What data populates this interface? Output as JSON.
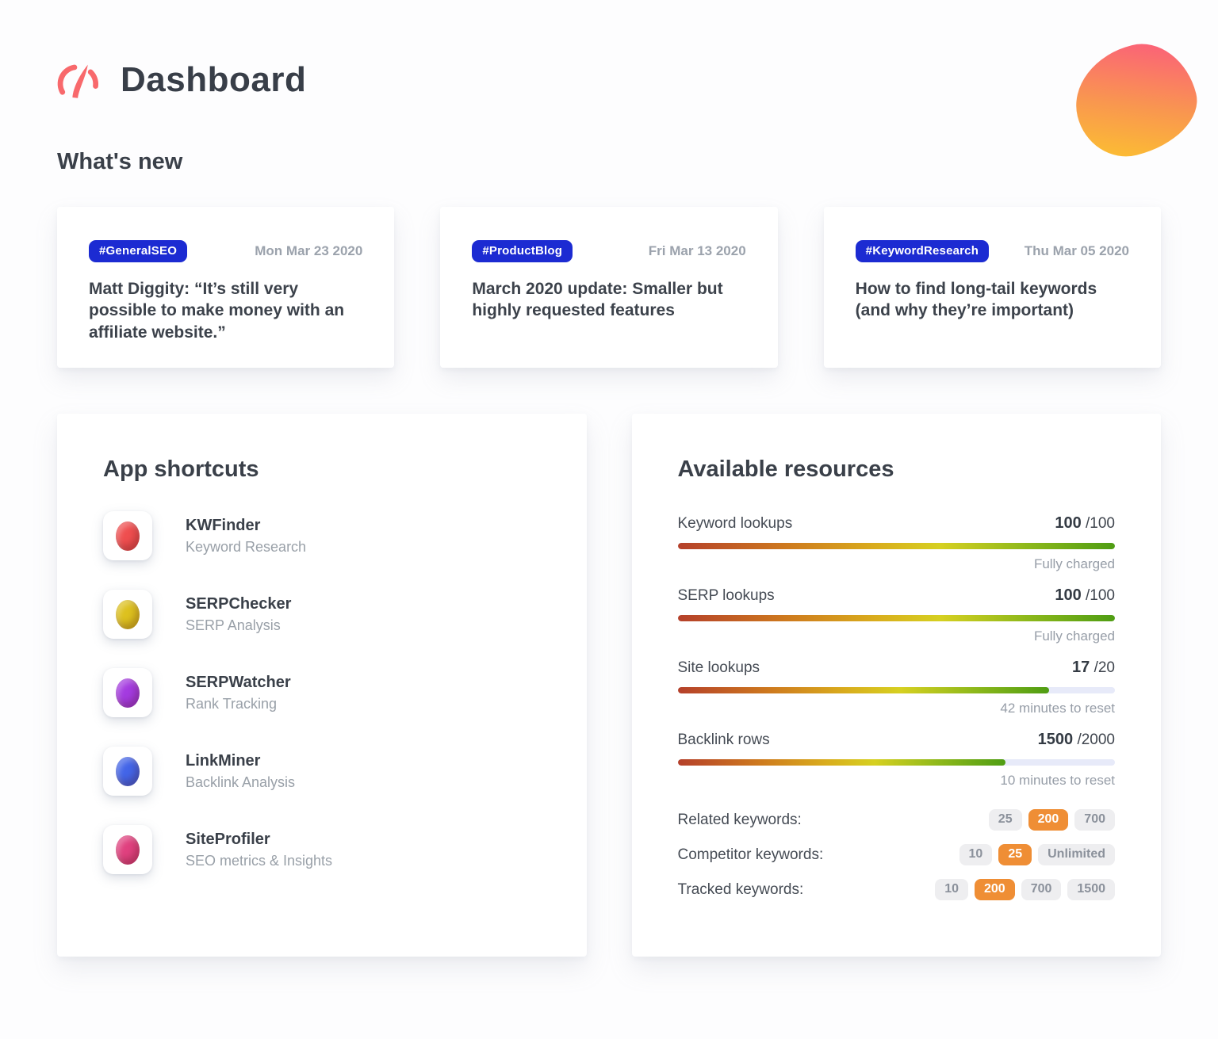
{
  "header": {
    "title": "Dashboard",
    "logo": "gauge-icon"
  },
  "colors": {
    "brand_coral": "#F8696C",
    "badge_blue": "#1C2BD2",
    "chip_orange": "#EF8E35",
    "meter_gradient_start": "#B5402A",
    "meter_gradient_mid": "#D6D021",
    "meter_gradient_end": "#4F9D13",
    "blob_gradient_top": "#FB5E7B",
    "blob_gradient_bottom": "#FCC22F"
  },
  "whats_new": {
    "heading": "What's new",
    "cards": [
      {
        "tag": "#GeneralSEO",
        "date": "Mon Mar 23 2020",
        "title": "Matt Diggity: “It’s still very possible to make money with an affiliate website.”"
      },
      {
        "tag": "#ProductBlog",
        "date": "Fri Mar 13 2020",
        "title": "March 2020 update: Smaller but highly requested features"
      },
      {
        "tag": "#KeywordResearch",
        "date": "Thu Mar 05 2020",
        "title": "How to find long-tail keywords (and why they’re important)"
      }
    ]
  },
  "app_shortcuts": {
    "heading": "App shortcuts",
    "items": [
      {
        "name": "KWFinder",
        "description": "Keyword Research",
        "color": "#EF4E4F"
      },
      {
        "name": "SERPChecker",
        "description": "SERP Analysis",
        "color": "#DDC11F"
      },
      {
        "name": "SERPWatcher",
        "description": "Rank Tracking",
        "color": "#A43BE0"
      },
      {
        "name": "LinkMiner",
        "description": "Backlink Analysis",
        "color": "#4365E8"
      },
      {
        "name": "SiteProfiler",
        "description": "SEO metrics & Insights",
        "color": "#E0417F"
      }
    ]
  },
  "resources": {
    "heading": "Available resources",
    "value_separator": "/",
    "meters": [
      {
        "label": "Keyword lookups",
        "used": 100,
        "total": 100,
        "note": "Fully charged"
      },
      {
        "label": "SERP lookups",
        "used": 100,
        "total": 100,
        "note": "Fully charged"
      },
      {
        "label": "Site lookups",
        "used": 17,
        "total": 20,
        "note": "42 minutes to reset"
      },
      {
        "label": "Backlink rows",
        "used": 1500,
        "total": 2000,
        "note": "10 minutes to reset"
      }
    ],
    "plans": [
      {
        "label": "Related keywords:",
        "options": [
          {
            "text": "25",
            "active": false
          },
          {
            "text": "200",
            "active": true
          },
          {
            "text": "700",
            "active": false
          }
        ]
      },
      {
        "label": "Competitor keywords:",
        "options": [
          {
            "text": "10",
            "active": false
          },
          {
            "text": "25",
            "active": true
          },
          {
            "text": "Unlimited",
            "active": false
          }
        ]
      },
      {
        "label": "Tracked keywords:",
        "options": [
          {
            "text": "10",
            "active": false
          },
          {
            "text": "200",
            "active": true
          },
          {
            "text": "700",
            "active": false
          },
          {
            "text": "1500",
            "active": false
          }
        ]
      }
    ]
  }
}
